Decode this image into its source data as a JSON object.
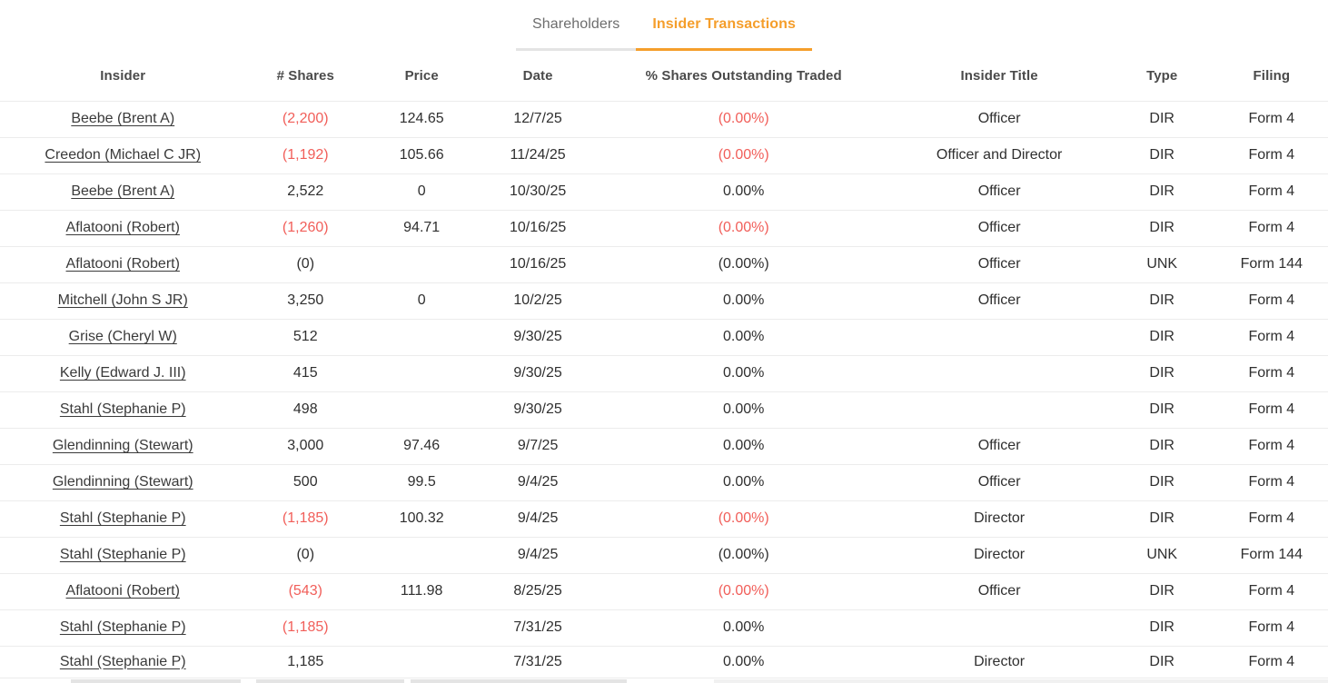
{
  "tabs": [
    {
      "label": "Shareholders",
      "active": false
    },
    {
      "label": "Insider Transactions",
      "active": true
    }
  ],
  "table": {
    "columns": [
      {
        "key": "insider",
        "label": "Insider"
      },
      {
        "key": "shares",
        "label": "# Shares"
      },
      {
        "key": "price",
        "label": "Price"
      },
      {
        "key": "date",
        "label": "Date"
      },
      {
        "key": "pct",
        "label": "% Shares Outstanding Traded"
      },
      {
        "key": "title",
        "label": "Insider Title"
      },
      {
        "key": "type",
        "label": "Type"
      },
      {
        "key": "filing",
        "label": "Filing"
      }
    ],
    "rows": [
      {
        "insider": "Beebe (Brent A)",
        "shares": "(2,200)",
        "shares_negative": true,
        "price": "124.65",
        "date": "12/7/25",
        "pct": "(0.00%)",
        "pct_negative": true,
        "title": "Officer",
        "type": "DIR",
        "filing": "Form 4"
      },
      {
        "insider": "Creedon (Michael C JR)",
        "shares": "(1,192)",
        "shares_negative": true,
        "price": "105.66",
        "date": "11/24/25",
        "pct": "(0.00%)",
        "pct_negative": true,
        "title": "Officer and Director",
        "type": "DIR",
        "filing": "Form 4"
      },
      {
        "insider": "Beebe (Brent A)",
        "shares": "2,522",
        "shares_negative": false,
        "price": "0",
        "date": "10/30/25",
        "pct": "0.00%",
        "pct_negative": false,
        "title": "Officer",
        "type": "DIR",
        "filing": "Form 4"
      },
      {
        "insider": "Aflatooni (Robert)",
        "shares": "(1,260)",
        "shares_negative": true,
        "price": "94.71",
        "date": "10/16/25",
        "pct": "(0.00%)",
        "pct_negative": true,
        "title": "Officer",
        "type": "DIR",
        "filing": "Form 4"
      },
      {
        "insider": "Aflatooni (Robert)",
        "shares": "(0)",
        "shares_negative": false,
        "price": "",
        "date": "10/16/25",
        "pct": "(0.00%)",
        "pct_negative": false,
        "title": "Officer",
        "type": "UNK",
        "filing": "Form 144"
      },
      {
        "insider": "Mitchell (John S JR)",
        "shares": "3,250",
        "shares_negative": false,
        "price": "0",
        "date": "10/2/25",
        "pct": "0.00%",
        "pct_negative": false,
        "title": "Officer",
        "type": "DIR",
        "filing": "Form 4"
      },
      {
        "insider": "Grise (Cheryl W)",
        "shares": "512",
        "shares_negative": false,
        "price": "",
        "date": "9/30/25",
        "pct": "0.00%",
        "pct_negative": false,
        "title": "",
        "type": "DIR",
        "filing": "Form 4"
      },
      {
        "insider": "Kelly (Edward J. III)",
        "shares": "415",
        "shares_negative": false,
        "price": "",
        "date": "9/30/25",
        "pct": "0.00%",
        "pct_negative": false,
        "title": "",
        "type": "DIR",
        "filing": "Form 4"
      },
      {
        "insider": "Stahl (Stephanie P)",
        "shares": "498",
        "shares_negative": false,
        "price": "",
        "date": "9/30/25",
        "pct": "0.00%",
        "pct_negative": false,
        "title": "",
        "type": "DIR",
        "filing": "Form 4"
      },
      {
        "insider": "Glendinning (Stewart)",
        "shares": "3,000",
        "shares_negative": false,
        "price": "97.46",
        "date": "9/7/25",
        "pct": "0.00%",
        "pct_negative": false,
        "title": "Officer",
        "type": "DIR",
        "filing": "Form 4"
      },
      {
        "insider": "Glendinning (Stewart)",
        "shares": "500",
        "shares_negative": false,
        "price": "99.5",
        "date": "9/4/25",
        "pct": "0.00%",
        "pct_negative": false,
        "title": "Officer",
        "type": "DIR",
        "filing": "Form 4"
      },
      {
        "insider": "Stahl (Stephanie P)",
        "shares": "(1,185)",
        "shares_negative": true,
        "price": "100.32",
        "date": "9/4/25",
        "pct": "(0.00%)",
        "pct_negative": true,
        "title": "Director",
        "type": "DIR",
        "filing": "Form 4"
      },
      {
        "insider": "Stahl (Stephanie P)",
        "shares": "(0)",
        "shares_negative": false,
        "price": "",
        "date": "9/4/25",
        "pct": "(0.00%)",
        "pct_negative": false,
        "title": "Director",
        "type": "UNK",
        "filing": "Form 144"
      },
      {
        "insider": "Aflatooni (Robert)",
        "shares": "(543)",
        "shares_negative": true,
        "price": "111.98",
        "date": "8/25/25",
        "pct": "(0.00%)",
        "pct_negative": true,
        "title": "Officer",
        "type": "DIR",
        "filing": "Form 4"
      },
      {
        "insider": "Stahl (Stephanie P)",
        "shares": "(1,185)",
        "shares_negative": true,
        "price": "",
        "date": "7/31/25",
        "pct": "0.00%",
        "pct_negative": false,
        "title": "",
        "type": "DIR",
        "filing": "Form 4"
      },
      {
        "insider": "Stahl (Stephanie P)",
        "shares": "1,185",
        "shares_negative": false,
        "price": "",
        "date": "7/31/25",
        "pct": "0.00%",
        "pct_negative": false,
        "title": "Director",
        "type": "DIR",
        "filing": "Form 4"
      }
    ]
  },
  "colors": {
    "accent_orange": "#F59E2B",
    "negative_red": "#F15E59",
    "text": "#2F2F2F",
    "header_text": "#4A4A4A",
    "tab_inactive": "#6D6D6D",
    "row_border": "#ECECEC"
  }
}
